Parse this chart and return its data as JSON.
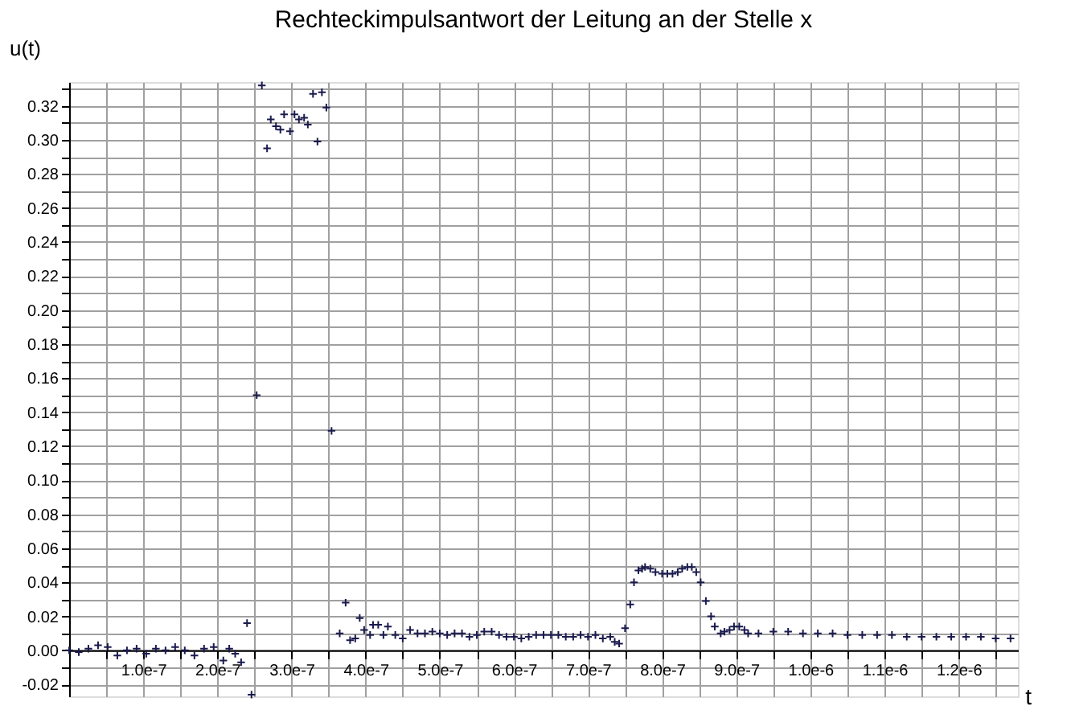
{
  "chart_data": {
    "type": "scatter",
    "title": "Rechteckimpulsantwort der Leitung an der Stelle x",
    "xlabel": "t",
    "ylabel": "u(t)",
    "xlim": [
      0,
      1.28e-06
    ],
    "ylim": [
      -0.027,
      0.334
    ],
    "xticks": [
      {
        "value": 0,
        "label": null
      },
      {
        "value": 5e-08,
        "label": null
      },
      {
        "value": 1e-07,
        "label": "1.0e-7"
      },
      {
        "value": 1.5e-07,
        "label": null
      },
      {
        "value": 2e-07,
        "label": "2.0e-7"
      },
      {
        "value": 2.5e-07,
        "label": null
      },
      {
        "value": 3e-07,
        "label": "3.0e-7"
      },
      {
        "value": 3.5e-07,
        "label": null
      },
      {
        "value": 4e-07,
        "label": "4.0e-7"
      },
      {
        "value": 4.5e-07,
        "label": null
      },
      {
        "value": 5e-07,
        "label": "5.0e-7"
      },
      {
        "value": 5.5e-07,
        "label": null
      },
      {
        "value": 6e-07,
        "label": "6.0e-7"
      },
      {
        "value": 6.5e-07,
        "label": null
      },
      {
        "value": 7e-07,
        "label": "7.0e-7"
      },
      {
        "value": 7.5e-07,
        "label": null
      },
      {
        "value": 8e-07,
        "label": "8.0e-7"
      },
      {
        "value": 8.5e-07,
        "label": null
      },
      {
        "value": 9e-07,
        "label": "9.0e-7"
      },
      {
        "value": 9.5e-07,
        "label": null
      },
      {
        "value": 1e-06,
        "label": "1.0e-6"
      },
      {
        "value": 1.05e-06,
        "label": null
      },
      {
        "value": 1.1e-06,
        "label": "1.1e-6"
      },
      {
        "value": 1.15e-06,
        "label": null
      },
      {
        "value": 1.2e-06,
        "label": "1.2e-6"
      },
      {
        "value": 1.25e-06,
        "label": null
      }
    ],
    "yticks": [
      {
        "value": -0.02,
        "label": "-0.02"
      },
      {
        "value": -0.01,
        "label": null
      },
      {
        "value": 0,
        "label": "0.00"
      },
      {
        "value": 0.01,
        "label": null
      },
      {
        "value": 0.02,
        "label": "0.02"
      },
      {
        "value": 0.03,
        "label": null
      },
      {
        "value": 0.04,
        "label": "0.04"
      },
      {
        "value": 0.05,
        "label": null
      },
      {
        "value": 0.06,
        "label": "0.06"
      },
      {
        "value": 0.07,
        "label": null
      },
      {
        "value": 0.08,
        "label": "0.08"
      },
      {
        "value": 0.09,
        "label": null
      },
      {
        "value": 0.1,
        "label": "0.10"
      },
      {
        "value": 0.11,
        "label": null
      },
      {
        "value": 0.12,
        "label": "0.12"
      },
      {
        "value": 0.13,
        "label": null
      },
      {
        "value": 0.14,
        "label": "0.14"
      },
      {
        "value": 0.15,
        "label": null
      },
      {
        "value": 0.16,
        "label": "0.16"
      },
      {
        "value": 0.17,
        "label": null
      },
      {
        "value": 0.18,
        "label": "0.18"
      },
      {
        "value": 0.19,
        "label": null
      },
      {
        "value": 0.2,
        "label": "0.20"
      },
      {
        "value": 0.21,
        "label": null
      },
      {
        "value": 0.22,
        "label": "0.22"
      },
      {
        "value": 0.23,
        "label": null
      },
      {
        "value": 0.24,
        "label": "0.24"
      },
      {
        "value": 0.25,
        "label": null
      },
      {
        "value": 0.26,
        "label": "0.26"
      },
      {
        "value": 0.27,
        "label": null
      },
      {
        "value": 0.28,
        "label": "0.28"
      },
      {
        "value": 0.29,
        "label": null
      },
      {
        "value": 0.3,
        "label": "0.30"
      },
      {
        "value": 0.31,
        "label": null
      },
      {
        "value": 0.32,
        "label": "0.32"
      },
      {
        "value": 0.33,
        "label": null
      }
    ],
    "grid": true,
    "marker": "cross",
    "legend": false,
    "series": [
      {
        "color": "#1a1a4e",
        "x": [
          0,
          1.3e-08,
          2.6e-08,
          3.9e-08,
          5.2e-08,
          6.5e-08,
          7.8e-08,
          9.1e-08,
          1.04e-07,
          1.17e-07,
          1.3e-07,
          1.43e-07,
          1.56e-07,
          1.69e-07,
          1.82e-07,
          1.95e-07,
          2.08e-07,
          2.16e-07,
          2.24e-07,
          2.32e-07,
          2.4e-07,
          2.46e-07,
          2.53e-07,
          2.6e-07,
          2.67e-07,
          2.72e-07,
          2.79e-07,
          2.85e-07,
          2.9e-07,
          2.98e-07,
          3.04e-07,
          3.1e-07,
          3.17e-07,
          3.22e-07,
          3.29e-07,
          3.35e-07,
          3.41e-07,
          3.47e-07,
          3.54e-07,
          3.65e-07,
          3.73e-07,
          3.79e-07,
          3.86e-07,
          3.92e-07,
          3.98e-07,
          4.06e-07,
          4.1e-07,
          4.17e-07,
          4.24e-07,
          4.3e-07,
          4.4e-07,
          4.5e-07,
          4.6e-07,
          4.7e-07,
          4.8e-07,
          4.9e-07,
          5e-07,
          5.1e-07,
          5.2e-07,
          5.3e-07,
          5.4e-07,
          5.5e-07,
          5.6e-07,
          5.7e-07,
          5.8e-07,
          5.9e-07,
          6e-07,
          6.1e-07,
          6.2e-07,
          6.3e-07,
          6.4e-07,
          6.5e-07,
          6.6e-07,
          6.7e-07,
          6.8e-07,
          6.9e-07,
          7e-07,
          7.1e-07,
          7.2e-07,
          7.3e-07,
          7.36e-07,
          7.42e-07,
          7.5e-07,
          7.57e-07,
          7.62e-07,
          7.68e-07,
          7.73e-07,
          7.77e-07,
          7.84e-07,
          7.91e-07,
          8e-07,
          8.07e-07,
          8.14e-07,
          8.21e-07,
          8.27e-07,
          8.34e-07,
          8.4e-07,
          8.46e-07,
          8.52e-07,
          8.59e-07,
          8.66e-07,
          8.71e-07,
          8.79e-07,
          8.84e-07,
          8.91e-07,
          8.97e-07,
          9.04e-07,
          9.11e-07,
          9.16e-07,
          9.3e-07,
          9.5e-07,
          9.7e-07,
          9.9e-07,
          1.01e-06,
          1.03e-06,
          1.05e-06,
          1.07e-06,
          1.09e-06,
          1.11e-06,
          1.13e-06,
          1.15e-06,
          1.17e-06,
          1.19e-06,
          1.21e-06,
          1.23e-06,
          1.25e-06,
          1.27e-06
        ],
        "values": [
          0,
          -0.001,
          0.001,
          0.003,
          0.002,
          -0.003,
          0,
          0.001,
          -0.002,
          0.001,
          0,
          0.002,
          0,
          -0.003,
          0.001,
          0.002,
          -0.006,
          0.001,
          -0.002,
          -0.007,
          0.016,
          -0.026,
          0.15,
          0.332,
          0.295,
          0.312,
          0.308,
          0.306,
          0.315,
          0.305,
          0.315,
          0.312,
          0.313,
          0.309,
          0.327,
          0.299,
          0.328,
          0.319,
          0.129,
          0.01,
          0.028,
          0.006,
          0.007,
          0.019,
          0.012,
          0.009,
          0.015,
          0.015,
          0.009,
          0.014,
          0.009,
          0.007,
          0.012,
          0.01,
          0.01,
          0.011,
          0.01,
          0.009,
          0.01,
          0.01,
          0.008,
          0.009,
          0.011,
          0.011,
          0.009,
          0.008,
          0.008,
          0.007,
          0.008,
          0.009,
          0.009,
          0.009,
          0.009,
          0.008,
          0.008,
          0.009,
          0.008,
          0.009,
          0.007,
          0.008,
          0.005,
          0.004,
          0.013,
          0.027,
          0.04,
          0.047,
          0.048,
          0.049,
          0.048,
          0.046,
          0.045,
          0.045,
          0.045,
          0.046,
          0.048,
          0.049,
          0.049,
          0.046,
          0.04,
          0.029,
          0.02,
          0.014,
          0.01,
          0.011,
          0.012,
          0.014,
          0.014,
          0.012,
          0.01,
          0.01,
          0.011,
          0.011,
          0.01,
          0.01,
          0.01,
          0.009,
          0.009,
          0.009,
          0.009,
          0.008,
          0.008,
          0.008,
          0.008,
          0.008,
          0.008,
          0.007,
          0.007
        ]
      }
    ]
  }
}
